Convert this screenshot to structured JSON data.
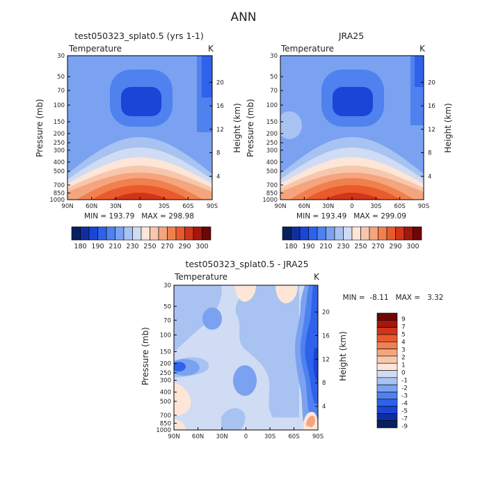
{
  "figure_title": "ANN",
  "colors": {
    "abs_scale": [
      "#08215e",
      "#0f2fa0",
      "#1a45d6",
      "#2f62ea",
      "#4f81ef",
      "#7aa2f1",
      "#a8c2f2",
      "#cfdcf3",
      "#fde6d7",
      "#f7c7ad",
      "#f4a57e",
      "#f1804f",
      "#e95a2d",
      "#d2341a",
      "#a5170c",
      "#6e0606"
    ],
    "diff_scale": [
      "#08215e",
      "#0f2fa0",
      "#1a45d6",
      "#2f62ea",
      "#4f81ef",
      "#7aa2f1",
      "#a8c2f2",
      "#cfdcf3",
      "#fde6d7",
      "#f7c7ad",
      "#f4a57e",
      "#f1804f",
      "#e95a2d",
      "#d2341a",
      "#a5170c",
      "#6e0606"
    ]
  },
  "chart_data": [
    {
      "type": "contour",
      "title": "test050323_splat0.5 (yrs 1-1)",
      "subtitle_left": "Temperature",
      "subtitle_right": "K",
      "xlabel": "",
      "ylabel": "Pressure (mb)",
      "ylabel_right": "Height (km)",
      "x_ticks": [
        "90N",
        "60N",
        "30N",
        "0",
        "30S",
        "60S",
        "90S"
      ],
      "x_values": [
        90,
        60,
        30,
        0,
        -30,
        -60,
        -90
      ],
      "y_ticks": [
        30,
        50,
        70,
        100,
        150,
        200,
        250,
        300,
        400,
        500,
        700,
        850,
        1000
      ],
      "y_right_ticks": [
        20,
        16,
        12,
        8,
        4
      ],
      "ylim": [
        1000,
        30
      ],
      "yscale": "log",
      "stats": "MIN = 193.79   MAX = 298.98",
      "min": 193.79,
      "max": 298.98,
      "colorbar": {
        "orientation": "horizontal",
        "levels": [
          180,
          190,
          200,
          210,
          220,
          230,
          240,
          250,
          260,
          270,
          280,
          290,
          300
        ],
        "labels": [
          "180",
          "190",
          "210",
          "230",
          "250",
          "270",
          "290",
          "300"
        ]
      }
    },
    {
      "type": "contour",
      "title": "JRA25",
      "subtitle_left": "Temperature",
      "subtitle_right": "K",
      "xlabel": "",
      "ylabel": "Pressure (mb)",
      "ylabel_right": "Height (km)",
      "x_ticks": [
        "90N",
        "60N",
        "30N",
        "0",
        "30S",
        "60S",
        "90S"
      ],
      "x_values": [
        90,
        60,
        30,
        0,
        -30,
        -60,
        -90
      ],
      "y_ticks": [
        30,
        50,
        70,
        100,
        150,
        200,
        250,
        300,
        400,
        500,
        700,
        850,
        1000
      ],
      "y_right_ticks": [
        20,
        16,
        12,
        8,
        4
      ],
      "ylim": [
        1000,
        30
      ],
      "yscale": "log",
      "stats": "MIN = 193.49   MAX = 299.09",
      "min": 193.49,
      "max": 299.09,
      "colorbar": {
        "orientation": "horizontal",
        "levels": [
          180,
          190,
          200,
          210,
          220,
          230,
          240,
          250,
          260,
          270,
          280,
          290,
          300
        ],
        "labels": [
          "180",
          "190",
          "210",
          "230",
          "250",
          "270",
          "290",
          "300"
        ]
      }
    },
    {
      "type": "contour",
      "title": "test050323_splat0.5 - JRA25",
      "subtitle_left": "Temperature",
      "subtitle_right": "K",
      "xlabel": "",
      "ylabel": "Pressure (mb)",
      "ylabel_right": "Height (km)",
      "x_ticks": [
        "90N",
        "60N",
        "30N",
        "0",
        "30S",
        "60S",
        "90S"
      ],
      "x_values": [
        90,
        60,
        30,
        0,
        -30,
        -60,
        -90
      ],
      "y_ticks": [
        30,
        50,
        70,
        100,
        150,
        200,
        250,
        300,
        400,
        500,
        700,
        850,
        1000
      ],
      "y_right_ticks": [
        20,
        16,
        12,
        8,
        4
      ],
      "ylim": [
        1000,
        30
      ],
      "yscale": "log",
      "stats": "MIN =  -8.11   MAX =   3.32",
      "min": -8.11,
      "max": 3.32,
      "colorbar": {
        "orientation": "vertical",
        "levels": [
          -9,
          -7,
          -5,
          -4,
          -3,
          -2,
          -1,
          0,
          1,
          2,
          3,
          4,
          5,
          7,
          9
        ],
        "labels": [
          "9",
          "7",
          "5",
          "4",
          "3",
          "2",
          "1",
          "0",
          "-1",
          "-2",
          "-3",
          "-4",
          "-5",
          "-7",
          "-9"
        ]
      }
    }
  ]
}
